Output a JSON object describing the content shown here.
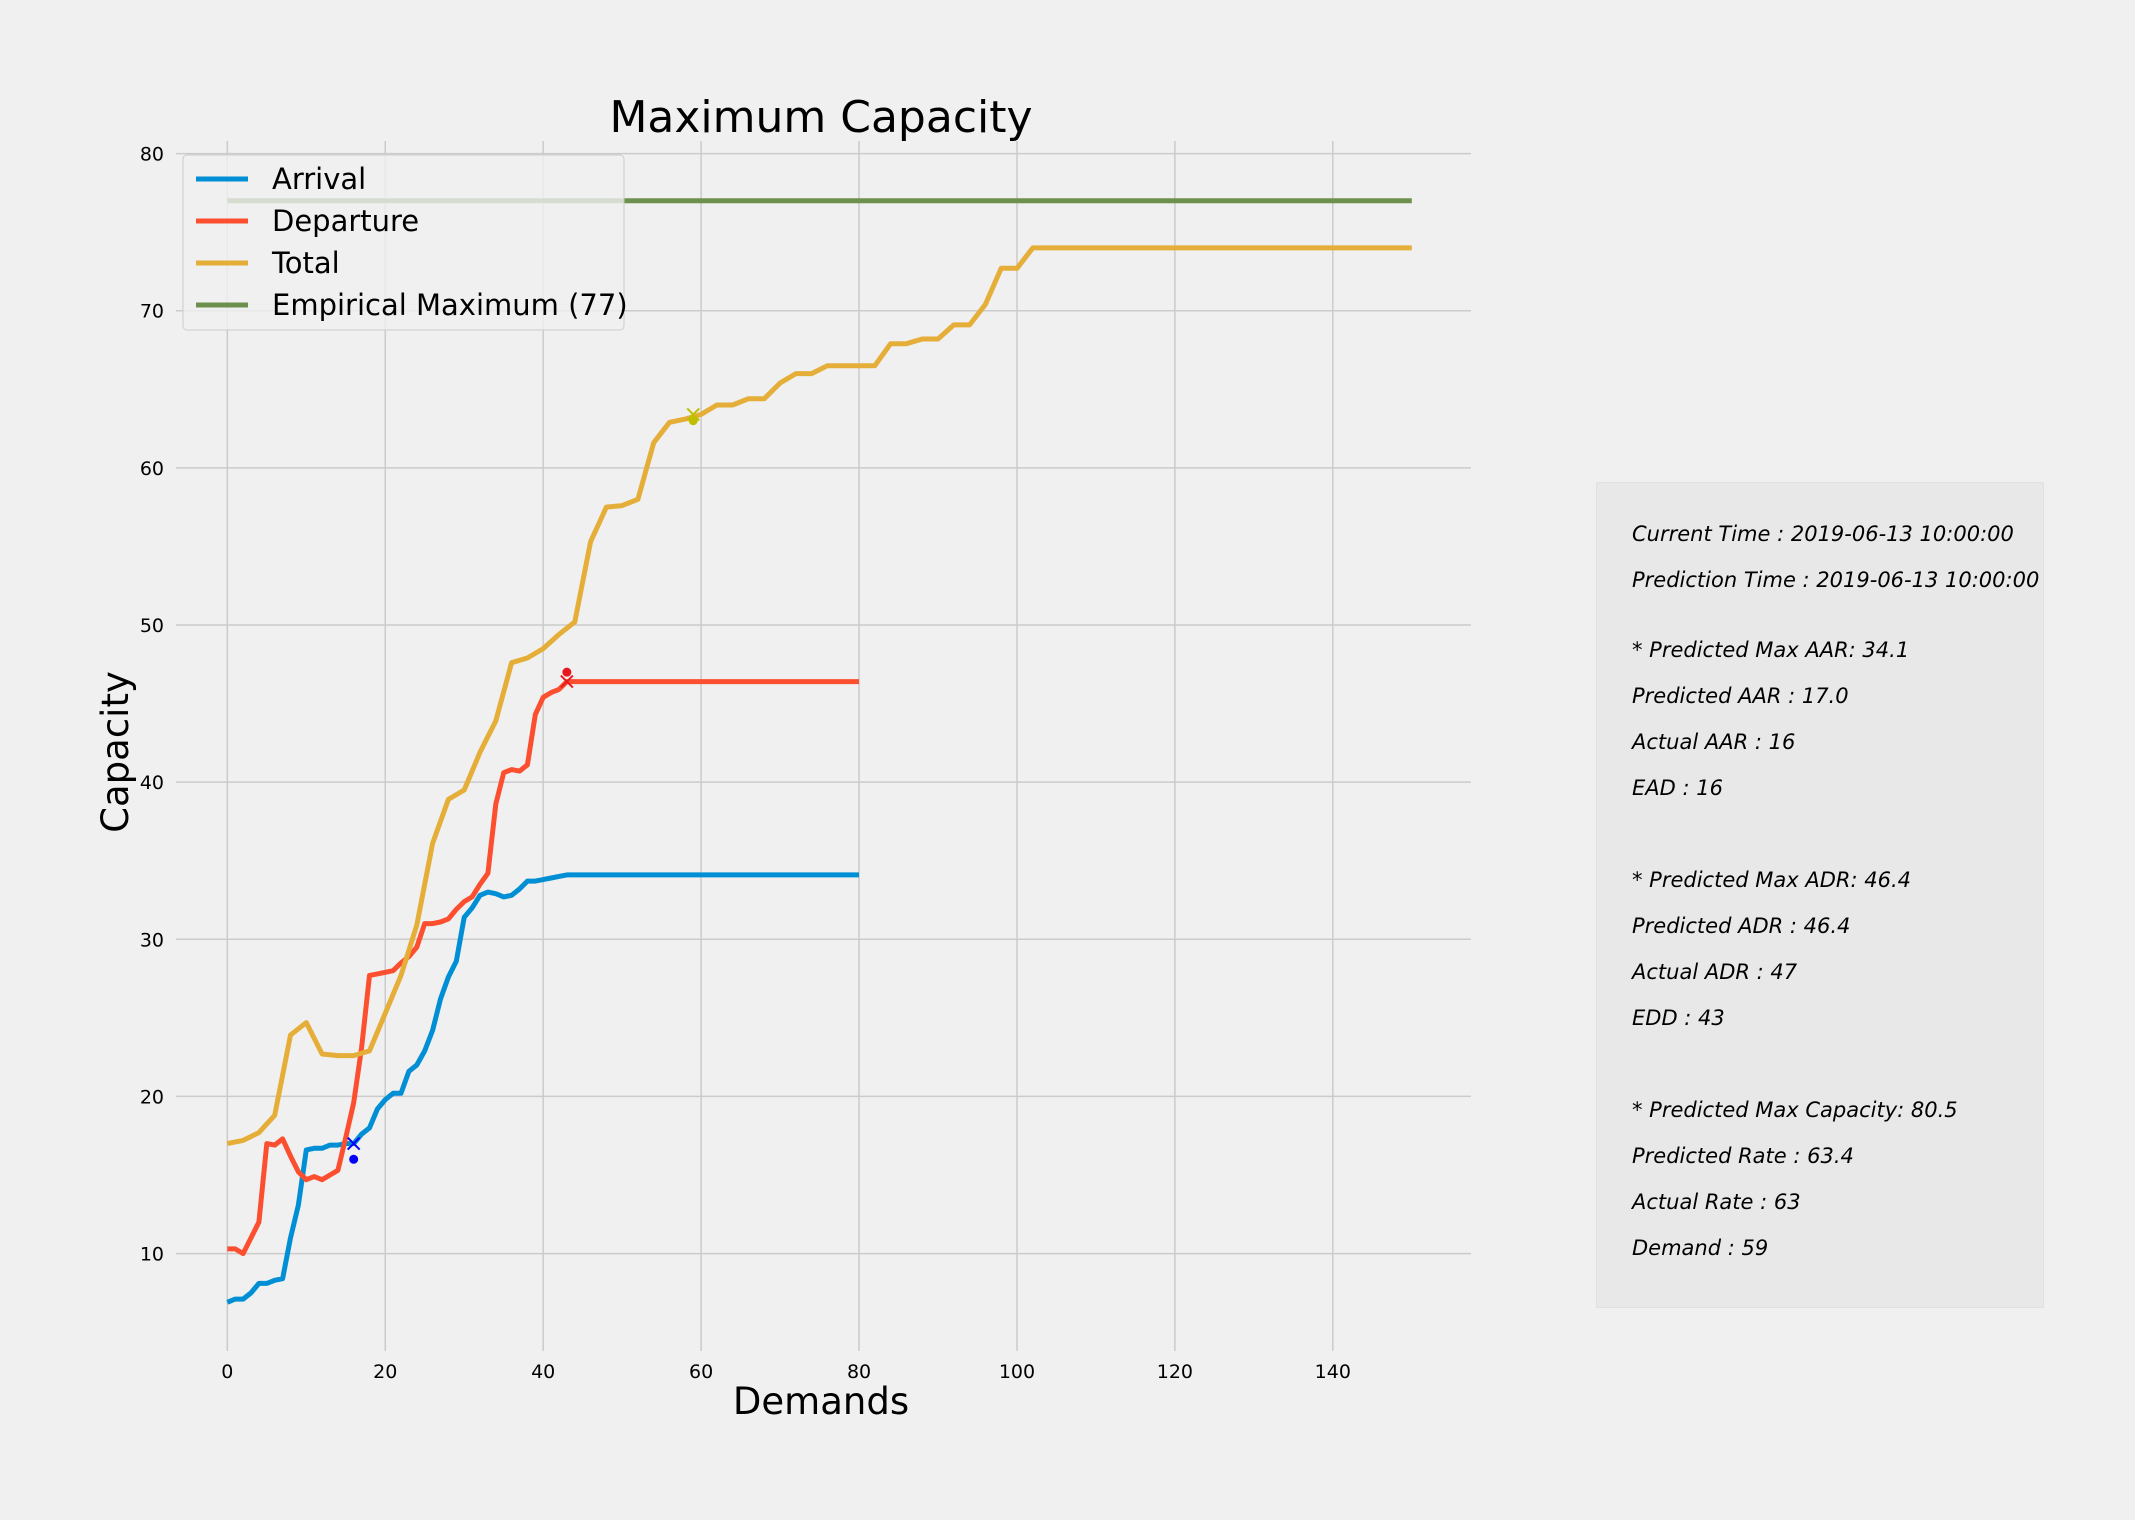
{
  "chart_data": {
    "type": "line",
    "title": "Maximum Capacity",
    "xlabel": "Demands",
    "ylabel": "Capacity",
    "xlim": [
      -6.5,
      157.5
    ],
    "ylim": [
      3.8,
      80.8
    ],
    "xticks": [
      0,
      20,
      40,
      60,
      80,
      100,
      120,
      140
    ],
    "yticks": [
      10,
      20,
      30,
      40,
      50,
      60,
      70,
      80
    ],
    "grid": true,
    "legend_position": "top-left",
    "series": [
      {
        "name": "Arrival",
        "color": "#008fd5",
        "x": [
          0,
          1,
          2,
          3,
          4,
          5,
          6,
          7,
          8,
          9,
          10,
          11,
          12,
          13,
          14,
          15,
          16,
          17,
          18,
          19,
          20,
          21,
          22,
          23,
          24,
          25,
          26,
          27,
          28,
          29,
          30,
          31,
          32,
          33,
          34,
          35,
          36,
          37,
          38,
          39,
          40,
          41,
          42,
          43,
          44,
          45,
          50,
          60,
          70,
          80
        ],
        "y": [
          6.9,
          7.1,
          7.1,
          7.5,
          8.1,
          8.1,
          8.3,
          8.4,
          11.0,
          13.1,
          16.6,
          16.7,
          16.7,
          16.9,
          16.9,
          17.0,
          17.0,
          17.6,
          18.0,
          19.2,
          19.8,
          20.2,
          20.2,
          21.6,
          22.0,
          22.9,
          24.2,
          26.2,
          27.6,
          28.6,
          31.4,
          32.0,
          32.8,
          33.0,
          32.9,
          32.7,
          32.8,
          33.2,
          33.7,
          33.7,
          33.8,
          33.9,
          34.0,
          34.1,
          34.1,
          34.1,
          34.1,
          34.1,
          34.1,
          34.1
        ]
      },
      {
        "name": "Departure",
        "color": "#fc4f30",
        "x": [
          0,
          1,
          2,
          3,
          4,
          5,
          6,
          7,
          8,
          9,
          10,
          11,
          12,
          13,
          14,
          15,
          16,
          17,
          18,
          19,
          20,
          21,
          22,
          23,
          24,
          25,
          26,
          27,
          28,
          29,
          30,
          31,
          32,
          33,
          34,
          35,
          36,
          37,
          38,
          39,
          40,
          41,
          42,
          43,
          50,
          60,
          70,
          80
        ],
        "y": [
          10.3,
          10.3,
          10.0,
          11.0,
          12.0,
          17.0,
          16.9,
          17.3,
          16.2,
          15.2,
          14.7,
          14.9,
          14.7,
          15.0,
          15.3,
          17.4,
          19.6,
          23.1,
          27.7,
          27.8,
          27.9,
          28.0,
          28.5,
          28.9,
          29.5,
          31.0,
          31.0,
          31.1,
          31.3,
          31.9,
          32.4,
          32.7,
          33.5,
          34.2,
          38.6,
          40.6,
          40.8,
          40.7,
          41.1,
          44.3,
          45.4,
          45.7,
          45.9,
          46.4,
          46.4,
          46.4,
          46.4,
          46.4
        ]
      },
      {
        "name": "Total",
        "color": "#e5ae38",
        "x": [
          0,
          2,
          4,
          6,
          8,
          10,
          12,
          14,
          16,
          18,
          20,
          22,
          24,
          26,
          28,
          30,
          32,
          34,
          36,
          38,
          40,
          42,
          44,
          46,
          48,
          50,
          52,
          54,
          56,
          58,
          60,
          62,
          64,
          66,
          68,
          70,
          72,
          74,
          76,
          78,
          80,
          82,
          84,
          86,
          88,
          90,
          92,
          94,
          96,
          98,
          100,
          102,
          110,
          120,
          130,
          140,
          150
        ],
        "y": [
          17.0,
          17.2,
          17.7,
          18.8,
          23.9,
          24.7,
          22.7,
          22.6,
          22.6,
          22.9,
          25.3,
          27.7,
          30.9,
          36.1,
          38.9,
          39.5,
          41.9,
          43.9,
          47.6,
          47.9,
          48.5,
          49.4,
          50.2,
          55.3,
          57.5,
          57.6,
          58.0,
          61.6,
          62.9,
          63.1,
          63.4,
          64.0,
          64.0,
          64.4,
          64.4,
          65.4,
          66.0,
          66.0,
          66.5,
          66.5,
          66.5,
          66.5,
          67.9,
          67.9,
          68.2,
          68.2,
          69.1,
          69.1,
          70.4,
          72.7,
          72.7,
          74.0,
          74.0,
          74.0,
          74.0,
          74.0,
          74.0
        ]
      },
      {
        "name": "Empirical Maximum (77)",
        "color": "#6d904f",
        "x": [
          0,
          150
        ],
        "y": [
          77,
          77
        ]
      }
    ],
    "markers": [
      {
        "shape": "x",
        "x": 16,
        "y": 17.0,
        "color": "#0000ff"
      },
      {
        "shape": "dot",
        "x": 16,
        "y": 16,
        "color": "#0000ff"
      },
      {
        "shape": "x",
        "x": 43,
        "y": 46.4,
        "color": "#e8191e"
      },
      {
        "shape": "dot",
        "x": 43,
        "y": 47,
        "color": "#e8191e"
      },
      {
        "shape": "x",
        "x": 59,
        "y": 63.4,
        "color": "#bfbf00"
      },
      {
        "shape": "dot",
        "x": 59,
        "y": 63,
        "color": "#bfbf00"
      }
    ]
  },
  "info_panel": {
    "current_time": "Current Time : 2019-06-13 10:00:00",
    "prediction_time": "Prediction Time : 2019-06-13 10:00:00",
    "max_aar": "* Predicted Max AAR: 34.1",
    "predicted_aar": "Predicted AAR : 17.0",
    "actual_aar": "Actual AAR : 16",
    "ead": "EAD : 16",
    "max_adr": "* Predicted Max ADR: 46.4",
    "predicted_adr": "Predicted ADR : 46.4",
    "actual_adr": "Actual ADR : 47",
    "edd": "EDD : 43",
    "max_capacity": "* Predicted Max Capacity: 80.5",
    "predicted_rate": "Predicted Rate : 63.4",
    "actual_rate": "Actual Rate : 63",
    "demand": "Demand : 59"
  }
}
